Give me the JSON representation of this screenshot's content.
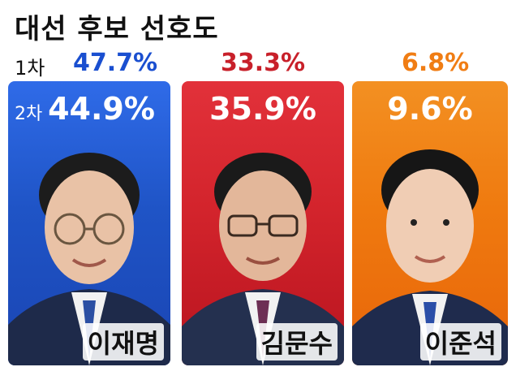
{
  "title": "대선 후보 선호도",
  "round1_label": "1차",
  "round2_label": "2차",
  "chart_data": {
    "type": "bar",
    "title": "대선 후보 선호도",
    "categories": [
      "이재명",
      "김문수",
      "이준석"
    ],
    "series": [
      {
        "name": "1차",
        "values": [
          47.7,
          33.3,
          6.8
        ]
      },
      {
        "name": "2차",
        "values": [
          44.9,
          35.9,
          9.6
        ]
      }
    ],
    "round1_text": [
      "47.7%",
      "33.3%",
      "6.8%"
    ],
    "round2_text": [
      "44.9%",
      "35.9%",
      "9.6%"
    ],
    "colors": [
      "#1f54c6",
      "#d3242c",
      "#ef7a0f"
    ],
    "text_colors": [
      "#1a4fd0",
      "#c8202a",
      "#f07d14"
    ]
  }
}
